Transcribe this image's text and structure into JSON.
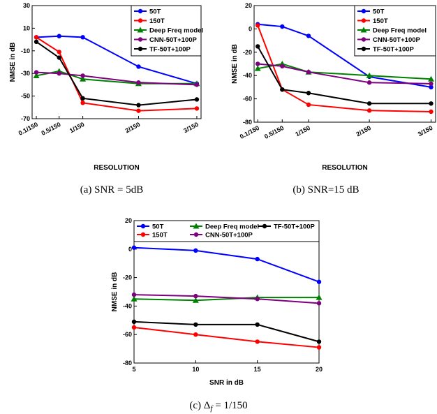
{
  "figure": {
    "captions": [
      "(a)  SNR = 5dB",
      "(b)  SNR=15 dB"
    ],
    "caption_c_prefix": "(c)  ",
    "caption_c_symbol": "Δ",
    "caption_c_subscript": "f",
    "caption_c_suffix": " = 1/150"
  },
  "colors": {
    "50T": "#0000ff",
    "150T": "#ff0000",
    "Deep Freq model": "#008000",
    "CNN-50T+100P": "#7f007f",
    "TF-50T+100P": "#000000"
  },
  "chart_data": [
    {
      "type": "line",
      "xlabel": "RESOLUTION",
      "ylabel": "NMSE in dB",
      "categories": [
        "0.1/150",
        "0.5/150",
        "1/150",
        "2/150",
        "3/150"
      ],
      "x": [
        0.1,
        0.5,
        1,
        2,
        3
      ],
      "ylim": [
        -70,
        30
      ],
      "yticks": [
        30,
        10,
        -10,
        -30,
        -50,
        -70
      ],
      "grid": false,
      "legend_position": "top-right",
      "series": [
        {
          "name": "50T",
          "marker": "circle",
          "values": [
            2,
            3,
            2,
            -24,
            -39
          ]
        },
        {
          "name": "150T",
          "marker": "circle",
          "values": [
            2,
            -11,
            -56,
            -63,
            -61
          ]
        },
        {
          "name": "Deep Freq model",
          "marker": "triangle",
          "values": [
            -32,
            -28,
            -35,
            -39,
            -39
          ]
        },
        {
          "name": "CNN-50T+100P",
          "marker": "circle",
          "values": [
            -29,
            -30,
            -32,
            -38,
            -40
          ]
        },
        {
          "name": "TF-50T+100P",
          "marker": "circle",
          "values": [
            -2,
            -16,
            -52,
            -58,
            -53
          ]
        }
      ]
    },
    {
      "type": "line",
      "xlabel": "RESOLUTION",
      "ylabel": "NMSE in dB",
      "categories": [
        "0.1/150",
        "0.5/150",
        "1/150",
        "2/150",
        "3/150"
      ],
      "x": [
        0.1,
        0.5,
        1,
        2,
        3
      ],
      "ylim": [
        -80,
        20
      ],
      "yticks": [
        20,
        0,
        -20,
        -40,
        -60,
        -80
      ],
      "grid": false,
      "legend_position": "top-right",
      "series": [
        {
          "name": "50T",
          "marker": "circle",
          "values": [
            4,
            2,
            -6,
            -41,
            -50
          ]
        },
        {
          "name": "150T",
          "marker": "circle",
          "values": [
            3,
            -52,
            -65,
            -70,
            -71
          ]
        },
        {
          "name": "Deep Freq model",
          "marker": "triangle",
          "values": [
            -34,
            -30,
            -37,
            -40,
            -43
          ]
        },
        {
          "name": "CNN-50T+100P",
          "marker": "circle",
          "values": [
            -30,
            -32,
            -37,
            -46,
            -47
          ]
        },
        {
          "name": "TF-50T+100P",
          "marker": "circle",
          "values": [
            -15,
            -52,
            -55,
            -64,
            -64
          ]
        }
      ]
    },
    {
      "type": "line",
      "xlabel": "SNR in dB",
      "ylabel": "NMSE in dB",
      "x": [
        5,
        10,
        15,
        20
      ],
      "xticks": [
        5,
        10,
        15,
        20
      ],
      "xlim": [
        5,
        20
      ],
      "ylim": [
        -80,
        20
      ],
      "yticks": [
        20,
        0,
        -20,
        -40,
        -60,
        -80
      ],
      "grid": false,
      "legend_position": "top",
      "series": [
        {
          "name": "50T",
          "marker": "circle",
          "values": [
            1,
            -1,
            -7,
            -23
          ]
        },
        {
          "name": "150T",
          "marker": "circle",
          "values": [
            -55,
            -60,
            -65,
            -69
          ]
        },
        {
          "name": "Deep Freq model",
          "marker": "triangle",
          "values": [
            -35,
            -36,
            -34,
            -34
          ]
        },
        {
          "name": "CNN-50T+100P",
          "marker": "circle",
          "values": [
            -32,
            -33,
            -35,
            -38
          ]
        },
        {
          "name": "TF-50T+100P",
          "marker": "circle",
          "values": [
            -51,
            -53,
            -53,
            -65
          ]
        }
      ]
    }
  ]
}
